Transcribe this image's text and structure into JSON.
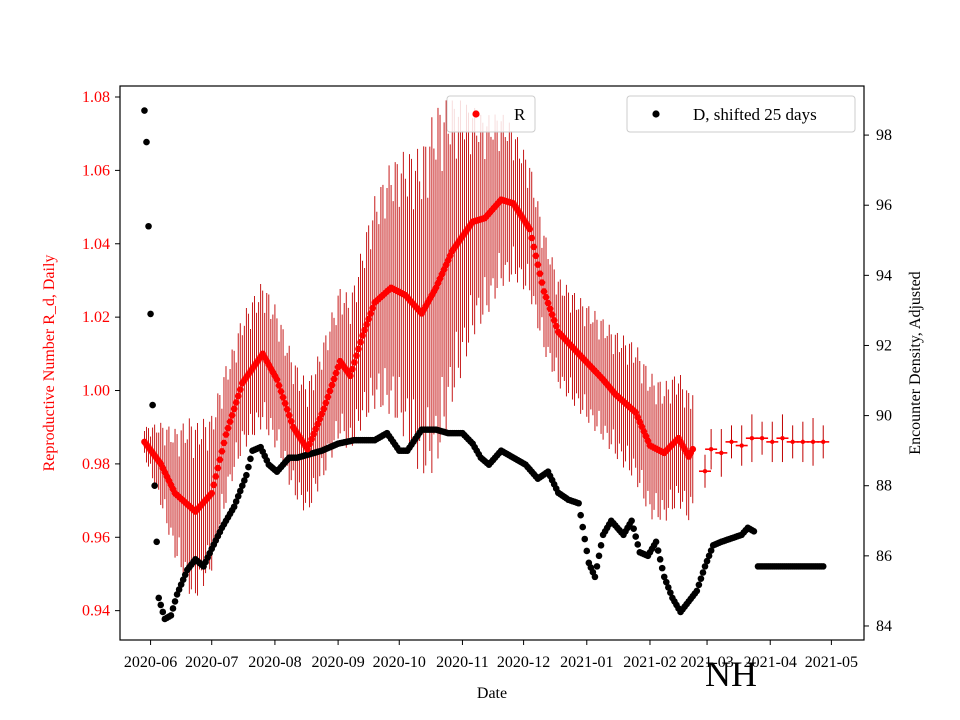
{
  "chart_data": {
    "type": "scatter",
    "region_label": "NH",
    "xlabel": "Date",
    "ylabel_left": "Reproductive Number R_d, Daily",
    "ylabel_right": "Encounter Density, Adjusted",
    "x_ticks": [
      "2020-06",
      "2020-07",
      "2020-08",
      "2020-09",
      "2020-10",
      "2020-11",
      "2020-12",
      "2021-01",
      "2021-02",
      "2021-03",
      "2021-04",
      "2021-05"
    ],
    "x_range_days": [
      -15,
      350
    ],
    "x_tick_days": [
      0,
      30,
      61,
      92,
      122,
      153,
      183,
      214,
      245,
      273,
      304,
      334
    ],
    "ylim_left": [
      0.932,
      1.083
    ],
    "yticks_left": [
      "0.94",
      "0.96",
      "0.98",
      "1.00",
      "1.02",
      "1.04",
      "1.06",
      "1.08"
    ],
    "ylim_right": [
      83.6,
      99.4
    ],
    "yticks_right": [
      "84",
      "86",
      "88",
      "90",
      "92",
      "94",
      "96",
      "98"
    ],
    "legend": {
      "r": {
        "label": "R",
        "position": "top-center"
      },
      "d": {
        "label": "D, shifted 25 days",
        "position": "top-right"
      }
    },
    "colors": {
      "r": "#ff0000",
      "r_error": "#c00000",
      "d": "#000000"
    },
    "series": [
      {
        "name": "R",
        "axis": "left",
        "keypoints": [
          [
            -3,
            0.986
          ],
          [
            5,
            0.98
          ],
          [
            12,
            0.972
          ],
          [
            22,
            0.967
          ],
          [
            30,
            0.972
          ],
          [
            37,
            0.988
          ],
          [
            45,
            1.002
          ],
          [
            55,
            1.01
          ],
          [
            62,
            1.003
          ],
          [
            70,
            0.99
          ],
          [
            77,
            0.984
          ],
          [
            85,
            0.995
          ],
          [
            93,
            1.008
          ],
          [
            98,
            1.004
          ],
          [
            104,
            1.015
          ],
          [
            110,
            1.024
          ],
          [
            118,
            1.028
          ],
          [
            125,
            1.026
          ],
          [
            133,
            1.021
          ],
          [
            140,
            1.028
          ],
          [
            148,
            1.038
          ],
          [
            158,
            1.046
          ],
          [
            164,
            1.047
          ],
          [
            172,
            1.052
          ],
          [
            178,
            1.051
          ],
          [
            186,
            1.044
          ],
          [
            193,
            1.027
          ],
          [
            200,
            1.016
          ],
          [
            210,
            1.01
          ],
          [
            222,
            1.003
          ],
          [
            228,
            0.999
          ],
          [
            238,
            0.994
          ],
          [
            245,
            0.985
          ],
          [
            252,
            0.983
          ],
          [
            259,
            0.987
          ],
          [
            264,
            0.982
          ],
          [
            266,
            0.984
          ]
        ],
        "error_halfwidth": [
          [
            -3,
            0.004
          ],
          [
            20,
            0.025
          ],
          [
            40,
            0.018
          ],
          [
            55,
            0.02
          ],
          [
            80,
            0.018
          ],
          [
            100,
            0.022
          ],
          [
            140,
            0.05
          ],
          [
            160,
            0.03
          ],
          [
            180,
            0.02
          ],
          [
            200,
            0.015
          ],
          [
            225,
            0.017
          ],
          [
            245,
            0.02
          ],
          [
            262,
            0.018
          ]
        ],
        "sparse_tail": [
          [
            272,
            0.978
          ],
          [
            275,
            0.984
          ],
          [
            280,
            0.983
          ],
          [
            285,
            0.986
          ],
          [
            290,
            0.985
          ],
          [
            295,
            0.987
          ],
          [
            300,
            0.987
          ],
          [
            305,
            0.986
          ],
          [
            310,
            0.987
          ],
          [
            315,
            0.986
          ],
          [
            320,
            0.986
          ],
          [
            325,
            0.986
          ],
          [
            330,
            0.986
          ]
        ]
      },
      {
        "name": "D, shifted 25 days",
        "axis": "right",
        "shift_days": 25,
        "keypoints": [
          [
            -3,
            98.7
          ],
          [
            -2,
            97.8
          ],
          [
            -1,
            95.4
          ],
          [
            0,
            92.9
          ],
          [
            1,
            90.3
          ],
          [
            2,
            88.0
          ],
          [
            4,
            84.8
          ],
          [
            7,
            84.2
          ],
          [
            10,
            84.3
          ],
          [
            13,
            84.9
          ],
          [
            18,
            85.6
          ],
          [
            22,
            85.9
          ],
          [
            26,
            85.7
          ],
          [
            30,
            86.2
          ],
          [
            35,
            86.8
          ],
          [
            41,
            87.4
          ],
          [
            47,
            88.3
          ],
          [
            50,
            89.0
          ],
          [
            54,
            89.1
          ],
          [
            58,
            88.6
          ],
          [
            62,
            88.4
          ],
          [
            68,
            88.8
          ],
          [
            72,
            88.8
          ],
          [
            78,
            88.9
          ],
          [
            84,
            89.0
          ],
          [
            92,
            89.2
          ],
          [
            100,
            89.3
          ],
          [
            110,
            89.3
          ],
          [
            116,
            89.5
          ],
          [
            122,
            89.0
          ],
          [
            126,
            89.0
          ],
          [
            133,
            89.6
          ],
          [
            140,
            89.6
          ],
          [
            146,
            89.5
          ],
          [
            153,
            89.5
          ],
          [
            158,
            89.2
          ],
          [
            162,
            88.8
          ],
          [
            166,
            88.6
          ],
          [
            172,
            89.0
          ],
          [
            178,
            88.8
          ],
          [
            184,
            88.6
          ],
          [
            190,
            88.2
          ],
          [
            195,
            88.4
          ],
          [
            200,
            87.8
          ],
          [
            205,
            87.6
          ],
          [
            210,
            87.5
          ],
          [
            215,
            85.8
          ],
          [
            218,
            85.4
          ],
          [
            222,
            86.6
          ],
          [
            226,
            87.0
          ],
          [
            232,
            86.6
          ],
          [
            236,
            87.0
          ],
          [
            240,
            86.1
          ],
          [
            244,
            86.0
          ],
          [
            248,
            86.4
          ],
          [
            252,
            85.4
          ],
          [
            256,
            84.8
          ],
          [
            260,
            84.4
          ],
          [
            264,
            84.7
          ],
          [
            268,
            85.0
          ],
          [
            272,
            85.7
          ],
          [
            276,
            86.3
          ],
          [
            280,
            86.4
          ],
          [
            285,
            86.5
          ],
          [
            290,
            86.6
          ],
          [
            293,
            86.8
          ],
          [
            296,
            86.7
          ]
        ],
        "flat_segment": {
          "from_day": 298,
          "to_day": 330,
          "value": 85.7
        }
      }
    ]
  }
}
